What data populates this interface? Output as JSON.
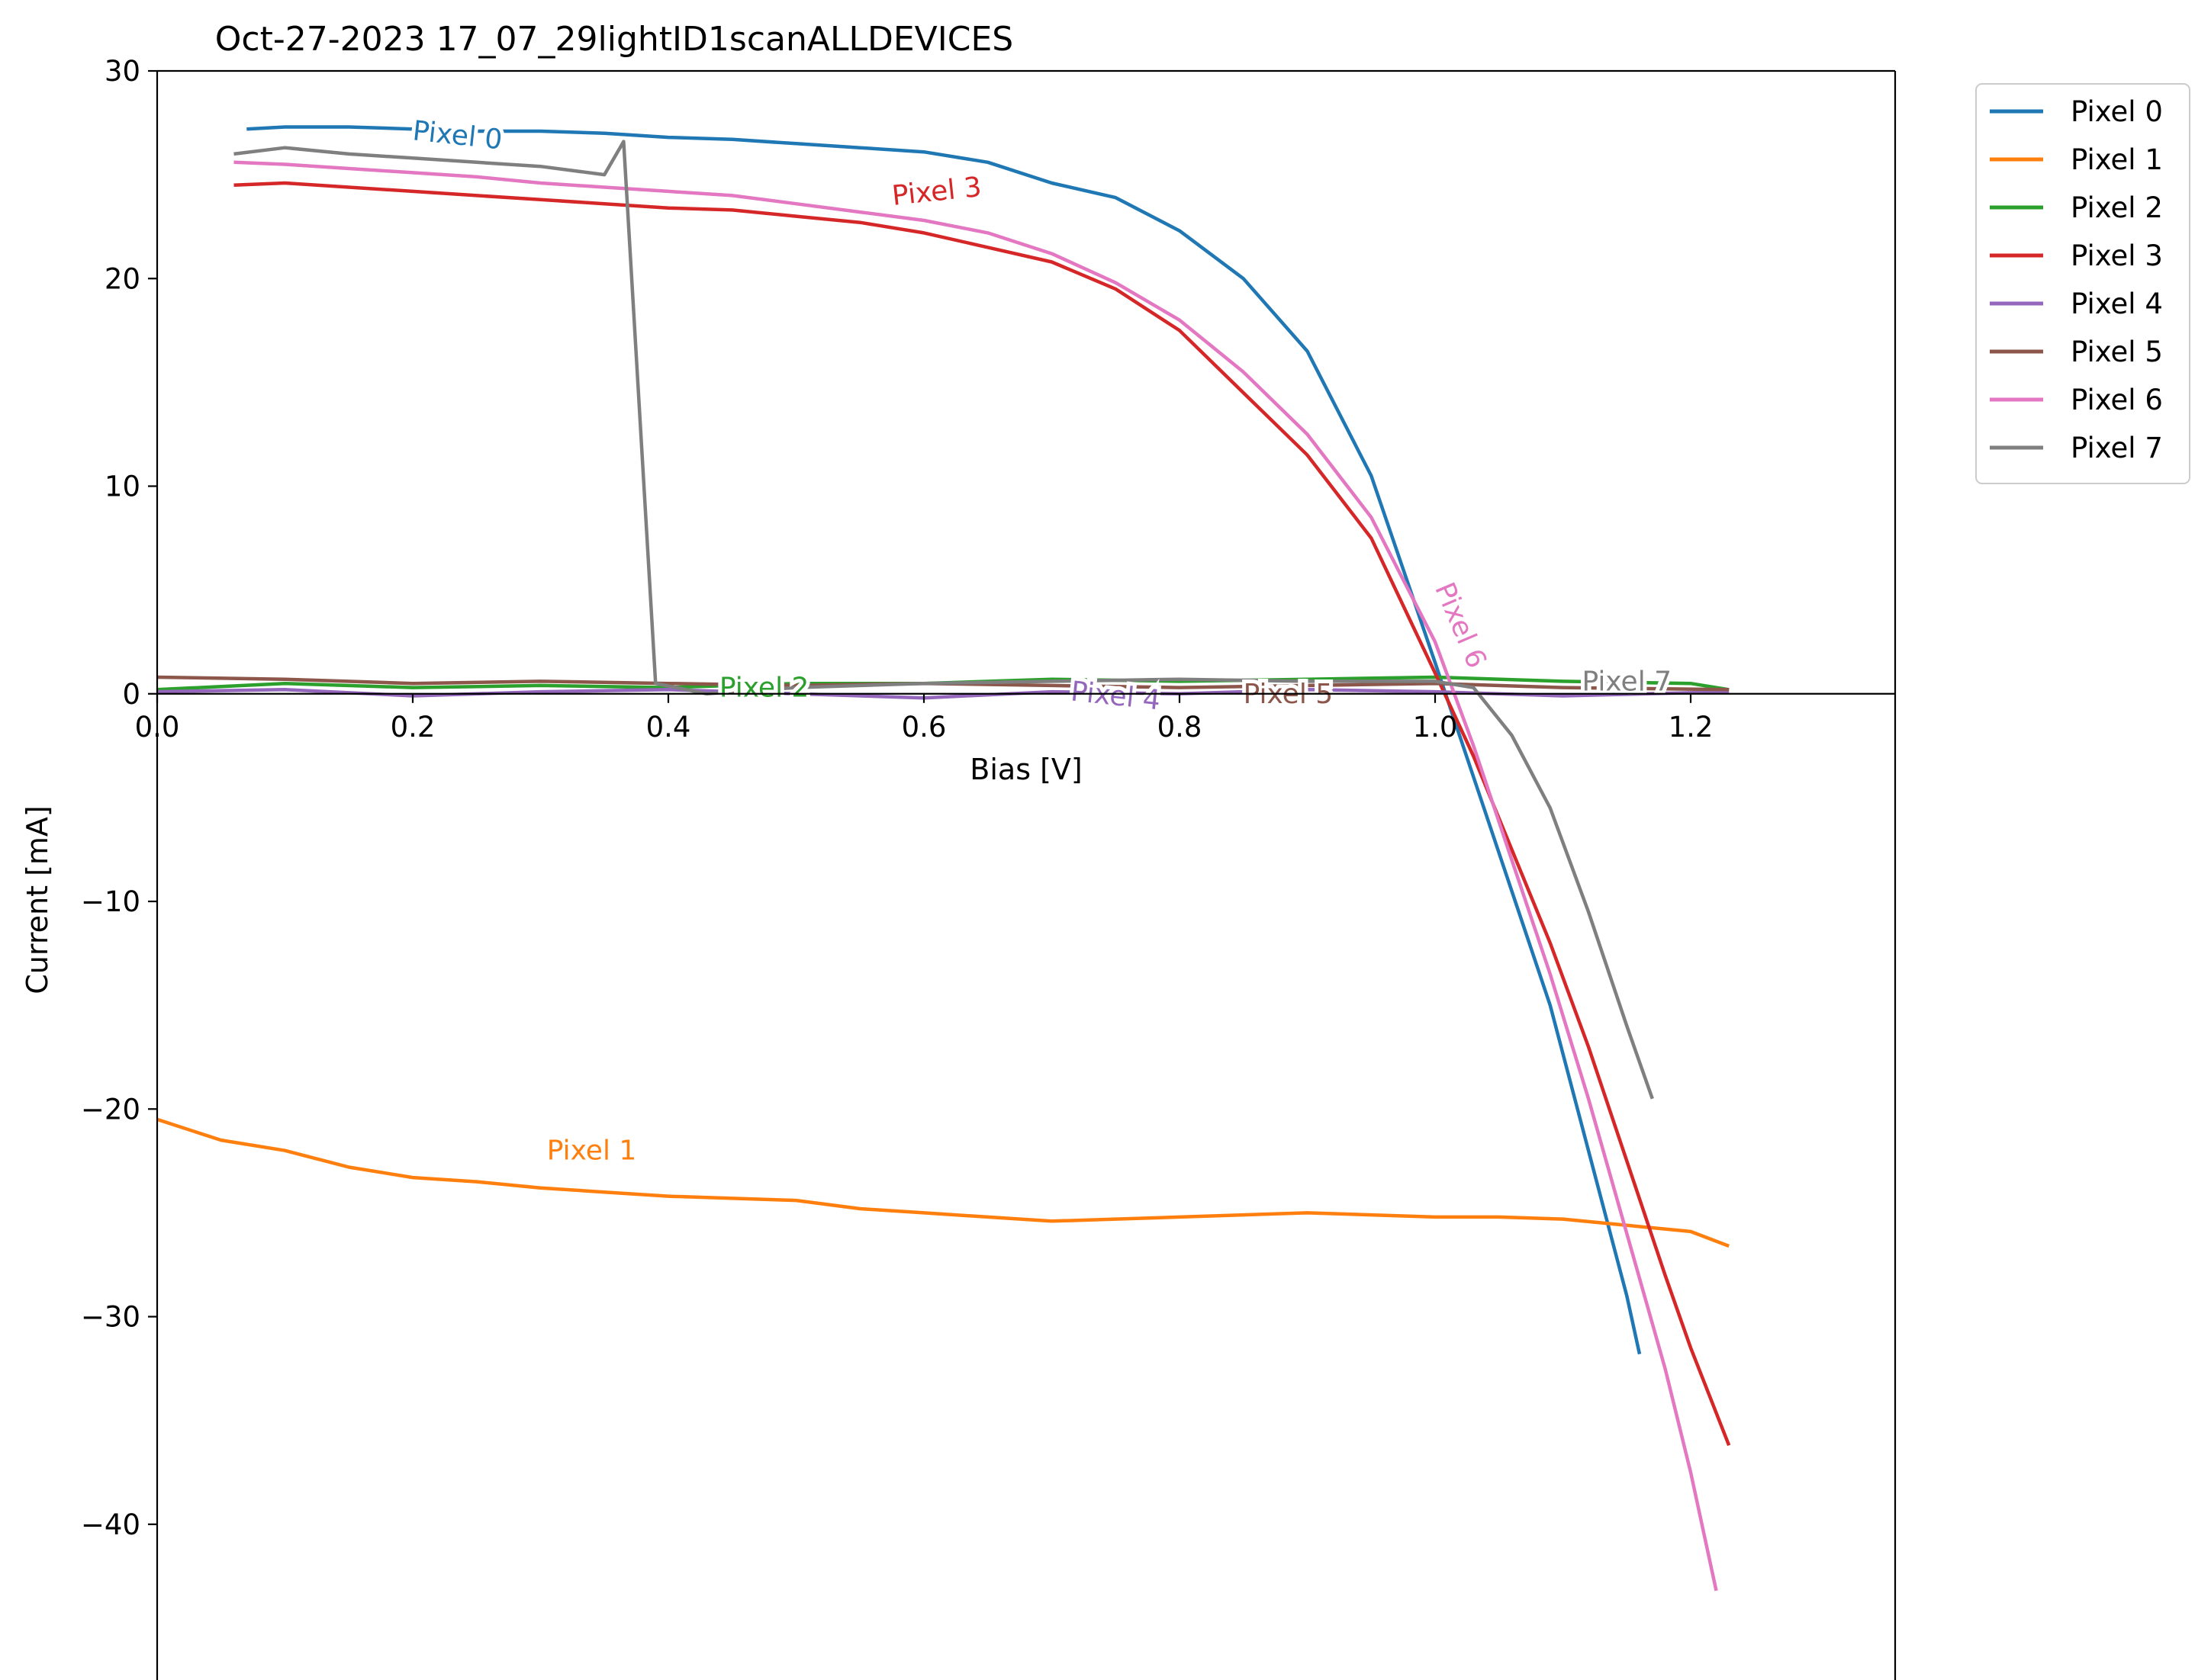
{
  "chart_data": {
    "type": "line",
    "title": "Oct-27-2023 17_07_29lightID1scanALLDEVICES",
    "xlabel": "Bias [V]",
    "ylabel": "Current [mA]",
    "xlim": [
      0.0,
      1.36
    ],
    "ylim": [
      -47.5,
      30
    ],
    "x_ticks": [
      "0.0",
      "0.2",
      "0.4",
      "0.6",
      "0.8",
      "1.0",
      "1.2"
    ],
    "y_ticks": [
      "30",
      "20",
      "10",
      "0",
      "−10",
      "−20",
      "−30",
      "−40"
    ],
    "y_tick_values": [
      30,
      20,
      10,
      0,
      -10,
      -20,
      -30,
      -40
    ],
    "grid": false,
    "legend_position": "outside-top-right",
    "series": [
      {
        "name": "Pixel 0",
        "label": "Pixel 0",
        "color": "#1f77b4",
        "x": [
          0.07,
          0.1,
          0.15,
          0.2,
          0.25,
          0.3,
          0.35,
          0.4,
          0.45,
          0.5,
          0.55,
          0.6,
          0.65,
          0.7,
          0.75,
          0.8,
          0.85,
          0.9,
          0.95,
          1.0,
          1.03,
          1.06,
          1.09,
          1.12,
          1.15,
          1.16
        ],
        "y": [
          27.2,
          27.3,
          27.3,
          27.2,
          27.1,
          27.1,
          27.0,
          26.8,
          26.7,
          26.5,
          26.3,
          26.1,
          25.6,
          24.6,
          23.9,
          22.3,
          20.0,
          16.5,
          10.5,
          1.5,
          -4.0,
          -9.5,
          -15.0,
          -22.0,
          -29.0,
          -31.8
        ]
      },
      {
        "name": "Pixel 1",
        "label": "Pixel 1",
        "color": "#ff7f0e",
        "x": [
          0.0,
          0.05,
          0.1,
          0.15,
          0.2,
          0.25,
          0.3,
          0.35,
          0.4,
          0.45,
          0.5,
          0.55,
          0.6,
          0.65,
          0.7,
          0.75,
          0.8,
          0.85,
          0.9,
          0.95,
          1.0,
          1.05,
          1.1,
          1.15,
          1.2,
          1.23
        ],
        "y": [
          -20.5,
          -21.5,
          -22.0,
          -22.8,
          -23.3,
          -23.5,
          -23.8,
          -24.0,
          -24.2,
          -24.3,
          -24.4,
          -24.8,
          -25.0,
          -25.2,
          -25.4,
          -25.3,
          -25.2,
          -25.1,
          -25.0,
          -25.1,
          -25.2,
          -25.2,
          -25.3,
          -25.6,
          -25.9,
          -26.6
        ]
      },
      {
        "name": "Pixel 2",
        "label": "Pixel 2",
        "color": "#2ca02c",
        "x": [
          0.0,
          0.1,
          0.2,
          0.3,
          0.4,
          0.5,
          0.6,
          0.7,
          0.8,
          0.9,
          1.0,
          1.1,
          1.2,
          1.23
        ],
        "y": [
          0.2,
          0.5,
          0.3,
          0.4,
          0.3,
          0.5,
          0.5,
          0.7,
          0.6,
          0.7,
          0.8,
          0.6,
          0.5,
          0.2
        ]
      },
      {
        "name": "Pixel 3",
        "label": "Pixel 3",
        "color": "#d62728",
        "x": [
          0.06,
          0.1,
          0.15,
          0.2,
          0.25,
          0.3,
          0.35,
          0.4,
          0.45,
          0.5,
          0.55,
          0.6,
          0.65,
          0.7,
          0.75,
          0.8,
          0.85,
          0.9,
          0.95,
          1.0,
          1.03,
          1.06,
          1.09,
          1.12,
          1.15,
          1.18,
          1.2,
          1.23
        ],
        "y": [
          24.5,
          24.6,
          24.4,
          24.2,
          24.0,
          23.8,
          23.6,
          23.4,
          23.3,
          23.0,
          22.7,
          22.2,
          21.5,
          20.8,
          19.5,
          17.5,
          14.5,
          11.5,
          7.5,
          1.0,
          -3.0,
          -7.5,
          -12.0,
          -17.0,
          -22.5,
          -28.0,
          -31.5,
          -36.2
        ]
      },
      {
        "name": "Pixel 4",
        "label": "Pixel 4",
        "color": "#9467bd",
        "x": [
          0.0,
          0.1,
          0.2,
          0.3,
          0.4,
          0.5,
          0.6,
          0.7,
          0.8,
          0.9,
          1.0,
          1.1,
          1.23
        ],
        "y": [
          0.1,
          0.2,
          -0.1,
          0.1,
          0.2,
          0.0,
          -0.2,
          0.1,
          0.0,
          0.2,
          0.1,
          -0.1,
          0.1
        ]
      },
      {
        "name": "Pixel 5",
        "label": "Pixel 5",
        "color": "#8c564b",
        "x": [
          0.0,
          0.1,
          0.2,
          0.3,
          0.4,
          0.5,
          0.6,
          0.7,
          0.8,
          0.9,
          1.0,
          1.1,
          1.23
        ],
        "y": [
          0.8,
          0.7,
          0.5,
          0.6,
          0.5,
          0.4,
          0.5,
          0.4,
          0.3,
          0.4,
          0.5,
          0.3,
          0.2
        ]
      },
      {
        "name": "Pixel 6",
        "label": "Pixel 6",
        "color": "#e377c2",
        "x": [
          0.06,
          0.1,
          0.15,
          0.2,
          0.25,
          0.3,
          0.35,
          0.4,
          0.45,
          0.5,
          0.55,
          0.6,
          0.65,
          0.7,
          0.75,
          0.8,
          0.85,
          0.9,
          0.95,
          1.0,
          1.03,
          1.06,
          1.09,
          1.12,
          1.15,
          1.18,
          1.2,
          1.22
        ],
        "y": [
          25.6,
          25.5,
          25.3,
          25.1,
          24.9,
          24.6,
          24.4,
          24.2,
          24.0,
          23.6,
          23.2,
          22.8,
          22.2,
          21.2,
          19.8,
          18.0,
          15.5,
          12.5,
          8.5,
          2.5,
          -2.5,
          -8.0,
          -13.5,
          -19.5,
          -26.0,
          -32.5,
          -37.5,
          -43.2
        ]
      },
      {
        "name": "Pixel 7",
        "label": "Pixel 7",
        "color": "#7f7f7f",
        "x": [
          0.06,
          0.1,
          0.15,
          0.2,
          0.25,
          0.3,
          0.35,
          0.365,
          0.39,
          0.43,
          0.5,
          0.6,
          0.7,
          0.8,
          0.9,
          1.0,
          1.03,
          1.06,
          1.09,
          1.12,
          1.15,
          1.17
        ],
        "y": [
          26.0,
          26.3,
          26.0,
          25.8,
          25.6,
          25.4,
          25.0,
          26.6,
          0.5,
          0.0,
          0.3,
          0.5,
          0.6,
          0.7,
          0.6,
          0.6,
          0.3,
          -2.0,
          -5.5,
          -10.5,
          -16.0,
          -19.5
        ]
      }
    ],
    "annotations": [
      {
        "text": "Pixel 0",
        "series": 0,
        "x": 0.235,
        "y": 26.9,
        "rotate": 6
      },
      {
        "text": "Pixel 1",
        "series": 1,
        "x": 0.34,
        "y": -22.0,
        "rotate": 0
      },
      {
        "text": "Pixel 2",
        "series": 2,
        "x": 0.475,
        "y": 0.3,
        "rotate": 0
      },
      {
        "text": "Pixel 3",
        "series": 3,
        "x": 0.61,
        "y": 24.2,
        "rotate": -6
      },
      {
        "text": "Pixel 4",
        "series": 4,
        "x": 0.75,
        "y": -0.1,
        "rotate": 6
      },
      {
        "text": "Pixel 5",
        "series": 5,
        "x": 0.885,
        "y": 0.0,
        "rotate": 0
      },
      {
        "text": "Pixel 6",
        "series": 6,
        "x": 1.02,
        "y": 3.3,
        "rotate": 67
      },
      {
        "text": "Pixel 7",
        "series": 7,
        "x": 1.15,
        "y": 0.6,
        "rotate": 0
      }
    ]
  }
}
